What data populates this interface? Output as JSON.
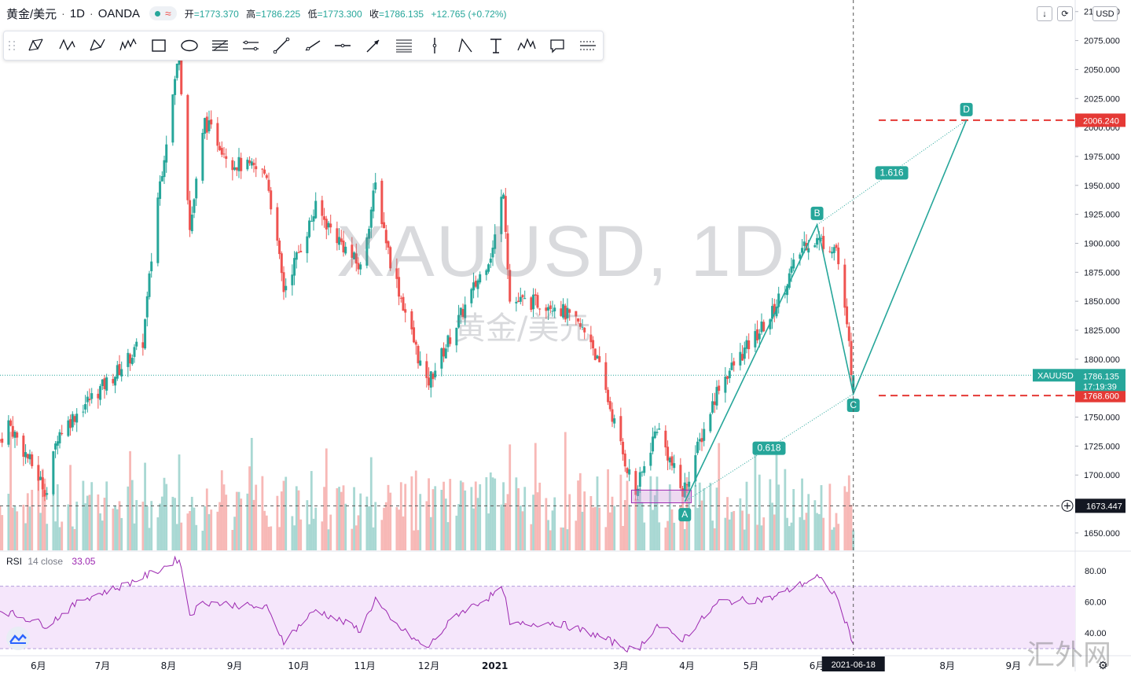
{
  "legend": {
    "symbol": "黄金/美元",
    "interval": "1D",
    "broker": "OANDA",
    "open_label": "开",
    "open": "=1773.370",
    "high_label": "高",
    "high": "=1786.225",
    "low_label": "低",
    "low": "=1773.300",
    "close_label": "收",
    "close": "=1786.135",
    "change": "+12.765 (+0.72%)",
    "status_wave": "≈"
  },
  "toolbar": {
    "tools": [
      "xabcd-pattern-icon",
      "cypher-pattern-icon",
      "abcd-pattern-icon",
      "three-drives-icon",
      "rectangle-icon",
      "ellipse-icon",
      "fib-retracement-icon",
      "parallel-channel-icon",
      "trend-line-icon",
      "ray-icon",
      "horizontal-line-icon",
      "arrow-icon",
      "fib-channel-icon",
      "vertical-line-icon",
      "triangle-pattern-icon",
      "text-icon",
      "elliott-wave-icon",
      "callout-icon",
      "regression-icon"
    ]
  },
  "top_controls": {
    "down_glyph": "↓",
    "refresh_glyph": "⟳",
    "currency": "USD"
  },
  "watermark": {
    "symbol": "XAUUSD, 1D",
    "name": "黄金/美元"
  },
  "site_watermark": "汇外网",
  "rsi": {
    "label": "RSI",
    "params": "14 close",
    "value": "33.05",
    "color": "#9c27b0",
    "band_upper": 70,
    "band_lower": 30,
    "band_color": "#f5e6fb"
  },
  "colors": {
    "up": "#26a69a",
    "down": "#ef5350",
    "vol_up": "#a8d8d3",
    "vol_down": "#f7b8b6",
    "pattern": "#26a69a",
    "alert": "#e53935",
    "rsi_line": "#9c27b0",
    "crosshair": "#555555"
  },
  "chart_data": [
    {
      "type": "candlestick",
      "title": "XAUUSD, 1D",
      "ylim": [
        1635,
        2110
      ],
      "y_ticks": [
        1650,
        1675,
        1700,
        1725,
        1750,
        1775,
        1800,
        1825,
        1850,
        1875,
        1900,
        1925,
        1950,
        1975,
        2000,
        2025,
        2050,
        2075,
        2100
      ],
      "y_tick_labels": [
        "1650.000",
        "1675.000",
        "1700.000",
        "1725.000",
        "1750.000",
        "1775.000",
        "1800.000",
        "1825.000",
        "1850.000",
        "1875.000",
        "1900.000",
        "1925.000",
        "1950.000",
        "1975.000",
        "2000.000",
        "2025.000",
        "2050.000",
        "2075.000",
        "2100.000"
      ],
      "x_axis": {
        "start": "2020-05-14",
        "end": "2021-09-30",
        "x_range": [
          "2020-05-14",
          "2021-09-30"
        ],
        "labels": [
          {
            "date": "2020-06-01",
            "text": "6月"
          },
          {
            "date": "2020-07-01",
            "text": "7月"
          },
          {
            "date": "2020-08-01",
            "text": "8月"
          },
          {
            "date": "2020-09-01",
            "text": "9月"
          },
          {
            "date": "2020-10-01",
            "text": "10月"
          },
          {
            "date": "2020-11-01",
            "text": "11月"
          },
          {
            "date": "2020-12-01",
            "text": "12月"
          },
          {
            "date": "2021-01-01",
            "text": "2021",
            "bold": true
          },
          {
            "date": "2021-03-01",
            "text": "3月"
          },
          {
            "date": "2021-04-01",
            "text": "4月"
          },
          {
            "date": "2021-05-01",
            "text": "5月"
          },
          {
            "date": "2021-06-01",
            "text": "6月"
          },
          {
            "date": "2021-08-01",
            "text": "8月"
          },
          {
            "date": "2021-09-01",
            "text": "9月"
          }
        ]
      },
      "price_path": [
        {
          "date": "2020-05-14",
          "close": 1730
        },
        {
          "date": "2020-05-18",
          "close": 1745
        },
        {
          "date": "2020-06-05",
          "close": 1685
        },
        {
          "date": "2020-06-10",
          "close": 1735
        },
        {
          "date": "2020-06-22",
          "close": 1760
        },
        {
          "date": "2020-07-06",
          "close": 1785
        },
        {
          "date": "2020-07-20",
          "close": 1815
        },
        {
          "date": "2020-07-27",
          "close": 1940
        },
        {
          "date": "2020-08-06",
          "close": 2065
        },
        {
          "date": "2020-08-11",
          "close": 1912
        },
        {
          "date": "2020-08-18",
          "close": 2005
        },
        {
          "date": "2020-08-31",
          "close": 1970
        },
        {
          "date": "2020-09-16",
          "close": 1960
        },
        {
          "date": "2020-09-24",
          "close": 1860
        },
        {
          "date": "2020-10-09",
          "close": 1930
        },
        {
          "date": "2020-10-30",
          "close": 1878
        },
        {
          "date": "2020-11-06",
          "close": 1950
        },
        {
          "date": "2020-11-13",
          "close": 1885
        },
        {
          "date": "2020-11-30",
          "close": 1777
        },
        {
          "date": "2020-12-14",
          "close": 1830
        },
        {
          "date": "2020-12-31",
          "close": 1895
        },
        {
          "date": "2021-01-05",
          "close": 1948
        },
        {
          "date": "2021-01-08",
          "close": 1850
        },
        {
          "date": "2021-01-29",
          "close": 1848
        },
        {
          "date": "2021-02-15",
          "close": 1818
        },
        {
          "date": "2021-03-02",
          "close": 1718
        },
        {
          "date": "2021-03-08",
          "close": 1684
        },
        {
          "date": "2021-03-18",
          "close": 1742
        },
        {
          "date": "2021-03-30",
          "close": 1684
        },
        {
          "date": "2021-04-16",
          "close": 1778
        },
        {
          "date": "2021-05-10",
          "close": 1836
        },
        {
          "date": "2021-05-26",
          "close": 1900
        },
        {
          "date": "2021-06-01",
          "close": 1903
        },
        {
          "date": "2021-06-10",
          "close": 1896
        },
        {
          "date": "2021-06-16",
          "close": 1812
        },
        {
          "date": "2021-06-18",
          "close": 1773
        }
      ],
      "crosshair_price_label": "1673.447",
      "crosshair_date_label": "2021-06-18",
      "last_price": {
        "symbol": "XAUUSD",
        "price": "1786.135",
        "countdown": "17:19:39"
      },
      "alert_lines": [
        {
          "price": 2006.24,
          "label": "2006.240"
        },
        {
          "price": 1768.6,
          "label": "1768.600"
        }
      ],
      "abcd_pattern": {
        "points": [
          {
            "label": "A",
            "date": "2021-03-31",
            "price": 1677
          },
          {
            "label": "B",
            "date": "2021-06-01",
            "price": 1916
          },
          {
            "label": "C",
            "date": "2021-06-18",
            "price": 1770
          },
          {
            "label": "D",
            "date": "2021-08-10",
            "price": 2006.24
          }
        ],
        "ratios": [
          {
            "value": "0.618",
            "between": "A-C"
          },
          {
            "value": "1.616",
            "between": "B-D"
          }
        ]
      },
      "highlight_box": {
        "from": "2021-03-06",
        "to": "2021-04-03",
        "price_low": 1676,
        "price_high": 1687
      }
    },
    {
      "type": "line",
      "title": "RSI 14 close",
      "ylim": [
        26,
        92
      ],
      "y_tick_labels": [
        "80.00",
        "60.00",
        "40.00"
      ],
      "y_ticks": [
        80,
        60,
        40
      ],
      "rsi_path": [
        {
          "date": "2020-05-14",
          "value": 55
        },
        {
          "date": "2020-06-05",
          "value": 45
        },
        {
          "date": "2020-06-22",
          "value": 62
        },
        {
          "date": "2020-07-10",
          "value": 70
        },
        {
          "date": "2020-07-27",
          "value": 80
        },
        {
          "date": "2020-08-06",
          "value": 88
        },
        {
          "date": "2020-08-11",
          "value": 52
        },
        {
          "date": "2020-08-18",
          "value": 60
        },
        {
          "date": "2020-09-16",
          "value": 56
        },
        {
          "date": "2020-09-24",
          "value": 35
        },
        {
          "date": "2020-10-09",
          "value": 55
        },
        {
          "date": "2020-10-30",
          "value": 42
        },
        {
          "date": "2020-11-06",
          "value": 62
        },
        {
          "date": "2020-11-13",
          "value": 48
        },
        {
          "date": "2020-11-30",
          "value": 30
        },
        {
          "date": "2020-12-14",
          "value": 52
        },
        {
          "date": "2021-01-05",
          "value": 68
        },
        {
          "date": "2021-01-08",
          "value": 45
        },
        {
          "date": "2021-01-29",
          "value": 47
        },
        {
          "date": "2021-02-15",
          "value": 40
        },
        {
          "date": "2021-03-08",
          "value": 28
        },
        {
          "date": "2021-03-18",
          "value": 45
        },
        {
          "date": "2021-03-30",
          "value": 36
        },
        {
          "date": "2021-04-16",
          "value": 60
        },
        {
          "date": "2021-05-10",
          "value": 62
        },
        {
          "date": "2021-06-01",
          "value": 76
        },
        {
          "date": "2021-06-10",
          "value": 64
        },
        {
          "date": "2021-06-18",
          "value": 33.05
        }
      ]
    }
  ]
}
